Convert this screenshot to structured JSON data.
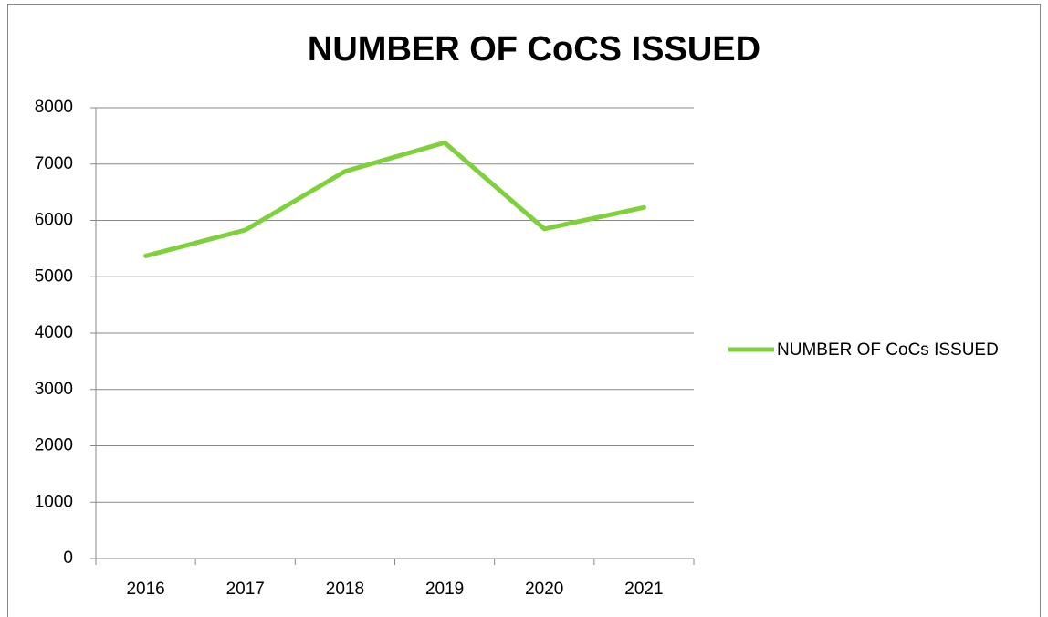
{
  "chart_data": {
    "type": "line",
    "title": "NUMBER OF CoCS ISSUED",
    "categories": [
      "2016",
      "2017",
      "2018",
      "2019",
      "2020",
      "2021"
    ],
    "series": [
      {
        "name": "NUMBER OF CoCs ISSUED",
        "color": "#7ed13b",
        "values": [
          5370,
          5830,
          6870,
          7380,
          5850,
          6230
        ]
      }
    ],
    "ylim": [
      0,
      8000
    ],
    "yticks": [
      0,
      1000,
      2000,
      3000,
      4000,
      5000,
      6000,
      7000,
      8000
    ],
    "grid": true,
    "legend": "right"
  }
}
